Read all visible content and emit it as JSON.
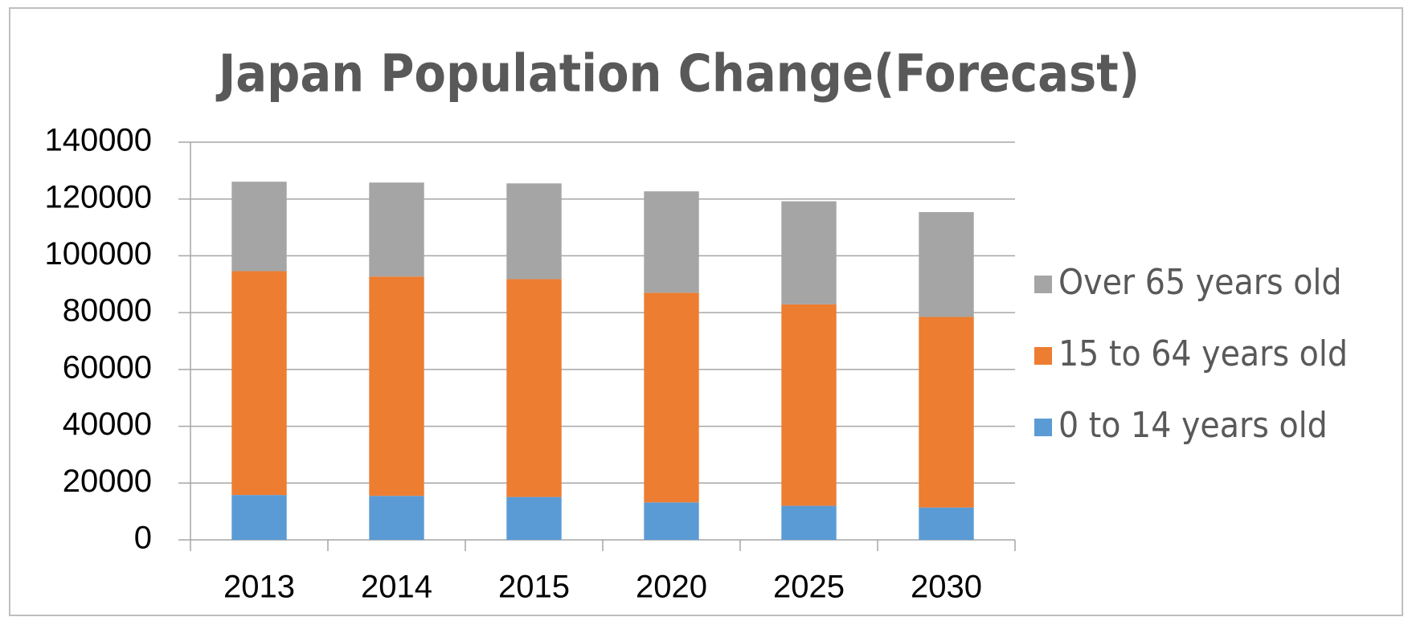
{
  "chart_data": {
    "type": "stacked_bar",
    "title": "Japan Population Change(Forecast)",
    "categories": [
      "2013",
      "2014",
      "2015",
      "2020",
      "2025",
      "2030"
    ],
    "series": [
      {
        "name": "0 to 14 years old",
        "color": "#5b9bd5",
        "values": [
          15800,
          15500,
          15100,
          13200,
          12000,
          11400
        ]
      },
      {
        "name": "15 to 64 years old",
        "color": "#ed7d31",
        "values": [
          78800,
          77200,
          76700,
          73800,
          70900,
          67100
        ]
      },
      {
        "name": "Over 65 years old",
        "color": "#a5a5a5",
        "values": [
          31500,
          33100,
          33700,
          35700,
          36300,
          36900
        ]
      }
    ],
    "ylim": [
      0,
      140000
    ],
    "yticks": [
      0,
      20000,
      40000,
      60000,
      80000,
      100000,
      120000,
      140000
    ],
    "grid": true,
    "legend": "right"
  }
}
